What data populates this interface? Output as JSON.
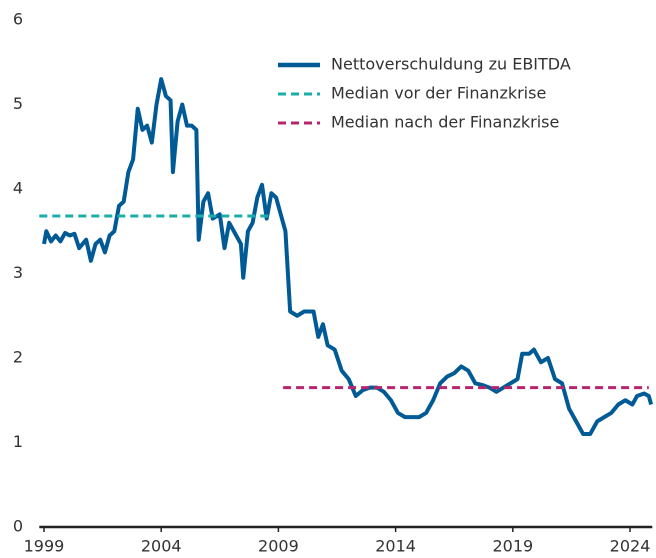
{
  "chart_data": {
    "type": "line",
    "xlim": [
      1998.8,
      2024.95
    ],
    "xticks": [
      1999,
      2004,
      2009,
      2014,
      2019,
      2024
    ],
    "ylim": [
      0,
      6
    ],
    "yticks": [
      0,
      1,
      2,
      3,
      4,
      5,
      6
    ],
    "grid": false,
    "legend": "top-right",
    "series": [
      {
        "name": "Nettoverschuldung zu EBITDA",
        "color": "#005a96",
        "style": "solid",
        "x": [
          1999.0,
          1999.1,
          1999.3,
          1999.5,
          1999.7,
          1999.9,
          2000.1,
          2000.3,
          2000.5,
          2000.8,
          2001.0,
          2001.2,
          2001.4,
          2001.6,
          2001.8,
          2002.0,
          2002.2,
          2002.4,
          2002.6,
          2002.8,
          2003.0,
          2003.2,
          2003.4,
          2003.6,
          2003.8,
          2004.0,
          2004.2,
          2004.4,
          2004.5,
          2004.7,
          2004.9,
          2005.1,
          2005.3,
          2005.5,
          2005.6,
          2005.8,
          2006.0,
          2006.2,
          2006.5,
          2006.7,
          2006.9,
          2007.1,
          2007.4,
          2007.5,
          2007.7,
          2007.9,
          2008.1,
          2008.3,
          2008.5,
          2008.7,
          2008.9,
          2009.1,
          2009.3,
          2009.5,
          2009.8,
          2010.1,
          2010.5,
          2010.7,
          2010.9,
          2011.1,
          2011.4,
          2011.7,
          2012.0,
          2012.3,
          2012.6,
          2012.9,
          2013.2,
          2013.5,
          2013.8,
          2014.1,
          2014.4,
          2014.7,
          2015.0,
          2015.3,
          2015.6,
          2015.9,
          2016.2,
          2016.5,
          2016.8,
          2017.1,
          2017.4,
          2017.7,
          2018.0,
          2018.3,
          2018.6,
          2018.9,
          2019.2,
          2019.4,
          2019.7,
          2019.9,
          2020.2,
          2020.5,
          2020.8,
          2021.1,
          2021.4,
          2021.7,
          2022.0,
          2022.3,
          2022.6,
          2022.9,
          2023.2,
          2023.5,
          2023.8,
          2024.1,
          2024.3,
          2024.6,
          2024.8,
          2024.9
        ],
        "values": [
          3.35,
          3.5,
          3.38,
          3.45,
          3.38,
          3.48,
          3.45,
          3.47,
          3.3,
          3.4,
          3.15,
          3.35,
          3.4,
          3.25,
          3.45,
          3.5,
          3.8,
          3.85,
          4.2,
          4.35,
          4.95,
          4.7,
          4.75,
          4.55,
          5.0,
          5.3,
          5.1,
          5.05,
          4.2,
          4.8,
          5.0,
          4.75,
          4.75,
          4.7,
          3.4,
          3.85,
          3.95,
          3.65,
          3.7,
          3.3,
          3.6,
          3.5,
          3.35,
          2.95,
          3.5,
          3.6,
          3.9,
          4.05,
          3.65,
          3.95,
          3.9,
          3.7,
          3.5,
          2.55,
          2.5,
          2.55,
          2.55,
          2.25,
          2.4,
          2.15,
          2.1,
          1.85,
          1.75,
          1.55,
          1.62,
          1.65,
          1.65,
          1.6,
          1.5,
          1.35,
          1.3,
          1.3,
          1.3,
          1.35,
          1.5,
          1.7,
          1.78,
          1.82,
          1.9,
          1.85,
          1.7,
          1.68,
          1.65,
          1.6,
          1.65,
          1.7,
          1.75,
          2.05,
          2.05,
          2.1,
          1.95,
          2.0,
          1.75,
          1.7,
          1.4,
          1.25,
          1.1,
          1.1,
          1.25,
          1.3,
          1.35,
          1.45,
          1.5,
          1.45,
          1.55,
          1.58,
          1.55,
          1.45
        ]
      },
      {
        "name": "Median vor der Finanzkrise",
        "color": "#1aaea8",
        "style": "dashed",
        "x": [
          1998.8,
          2008.7
        ],
        "values": [
          3.68,
          3.68
        ]
      },
      {
        "name": "Median nach der Finanzkrise",
        "color": "#b5266e",
        "style": "dashed",
        "x": [
          2009.2,
          2024.8
        ],
        "values": [
          1.65,
          1.65
        ]
      }
    ]
  }
}
